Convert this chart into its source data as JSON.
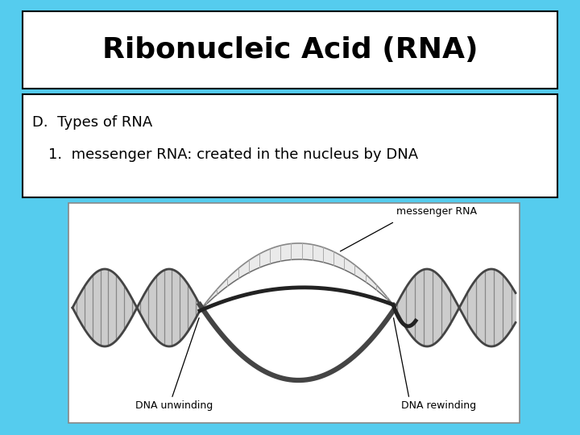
{
  "title": "Ribonucleic Acid (RNA)",
  "subtitle_line1": "D.  Types of RNA",
  "subtitle_line2": "    1.  messenger RNA: created in the nucleus by DNA",
  "background_color": "#55CCEE",
  "title_box_color": "#FFFFFF",
  "text_box_color": "#FFFFFF",
  "title_fontsize": 26,
  "subtitle_fontsize": 13,
  "label_messenger": "messenger RNA",
  "label_unwinding": "DNA unwinding",
  "label_rewinding": "DNA rewinding"
}
